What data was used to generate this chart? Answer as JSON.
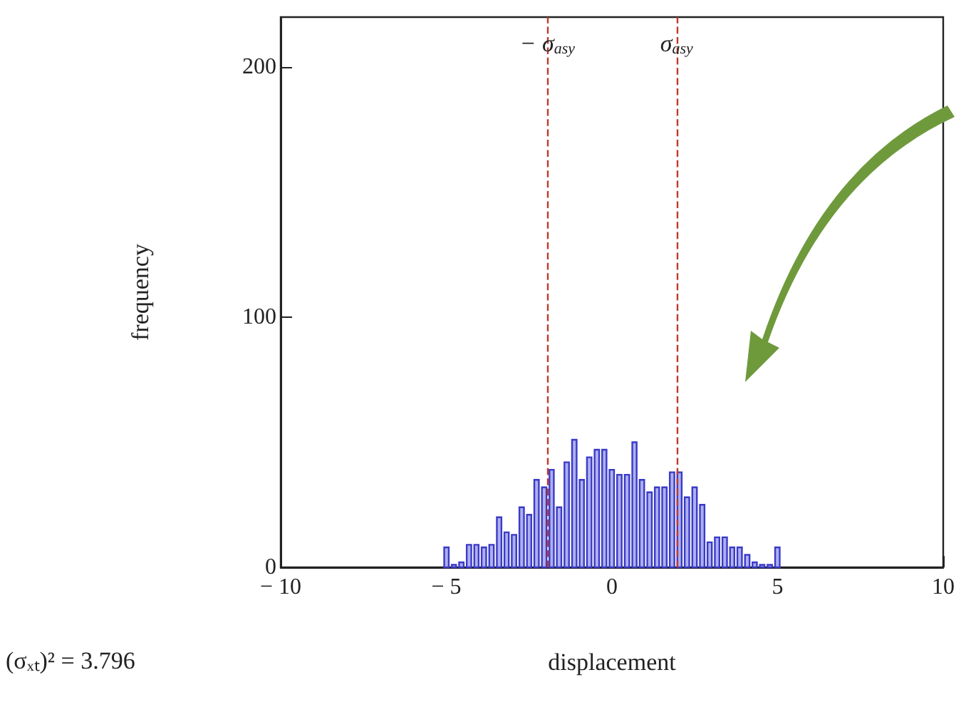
{
  "chart_data": {
    "type": "histogram",
    "xlabel": "displacement",
    "ylabel": "frequency",
    "bins": [
      -5.11,
      -4.88,
      -4.66,
      -4.43,
      -4.2,
      -3.98,
      -3.75,
      -3.52,
      -3.29,
      -3.07,
      -2.84,
      -2.61,
      -2.39,
      -2.16,
      -1.93,
      -1.71,
      -1.48,
      -1.25,
      -1.02,
      -0.8,
      -0.57,
      -0.34,
      -0.12,
      0.11,
      0.34,
      0.57,
      0.79,
      1.02,
      1.25,
      1.47,
      1.7,
      1.93,
      2.15,
      2.38,
      2.61,
      2.84,
      3.06,
      3.29,
      3.52,
      3.74,
      3.97,
      4.2,
      4.42,
      4.65,
      4.88,
      5.11
    ],
    "values": [
      8,
      1,
      2,
      9,
      9,
      8,
      9,
      20,
      14,
      13,
      24,
      21,
      35,
      32,
      39,
      24,
      42,
      51,
      35,
      44,
      47,
      47,
      39,
      37,
      37,
      50,
      35,
      30,
      32,
      32,
      38,
      38,
      28,
      32,
      25,
      10,
      12,
      12,
      8,
      8,
      5,
      2,
      1,
      1,
      8
    ],
    "color": "#3a3ac8",
    "xlim": [
      -10,
      10
    ],
    "xticks": [
      {
        "value": -10,
        "label": "− 10"
      },
      {
        "value": -5,
        "label": "− 5"
      },
      0,
      5,
      10
    ],
    "ylim": [
      0,
      220
    ],
    "yticks": [
      0,
      100,
      200
    ],
    "grid": false,
    "ref_lines": [
      {
        "axis": "x",
        "value": -1.95,
        "label": "− σ$_{asy}$",
        "color": "#c0392b",
        "line_style": "dashed"
      },
      {
        "axis": "x",
        "value": 1.95,
        "label": "σ$_{asy}$",
        "color": "#c0392b",
        "line_style": "dashed"
      }
    ],
    "annotations": [
      "(σₓₜ)² = 3.796"
    ]
  }
}
